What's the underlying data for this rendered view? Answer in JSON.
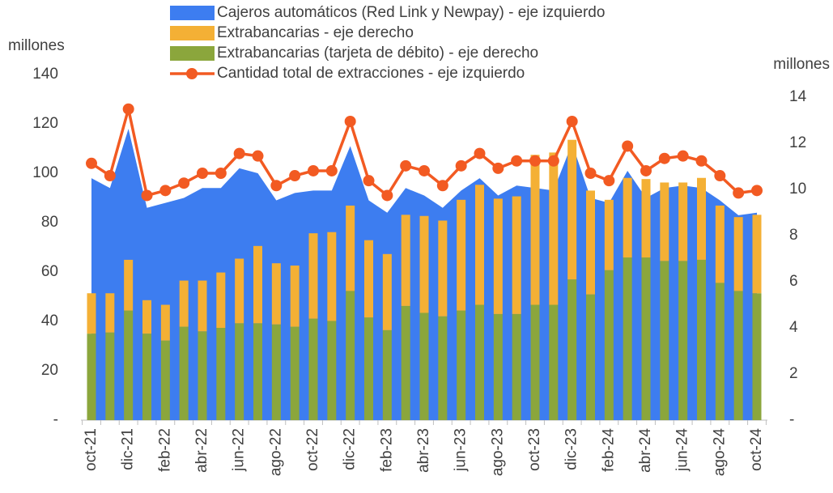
{
  "chart_data": {
    "type": "combo",
    "y_label": "millones",
    "y2_label": "millones",
    "categories": [
      "oct-21",
      null,
      "dic-21",
      null,
      "feb-22",
      null,
      "abr-22",
      null,
      "jun-22",
      null,
      "ago-22",
      null,
      "oct-22",
      null,
      "dic-22",
      null,
      "feb-23",
      null,
      "abr-23",
      null,
      "jun-23",
      null,
      "ago-23",
      null,
      "oct-23",
      null,
      "dic-23",
      null,
      "feb-24",
      null,
      "abr-24",
      null,
      "jun-24",
      null,
      "ago-24",
      null,
      "oct-24"
    ],
    "series": [
      {
        "name": "Cajeros automáticos (Red Link y Newpay) - eje izquierdo",
        "type": "area",
        "color": "#3d7df0",
        "axis": "y",
        "values": [
          98,
          94,
          118,
          86,
          88,
          90,
          94,
          94,
          102,
          100,
          89,
          92,
          93,
          93,
          111,
          89,
          84,
          94,
          91,
          86,
          93,
          98,
          91,
          95,
          94,
          93,
          112,
          90,
          88,
          101,
          90,
          94,
          95,
          94,
          89,
          83,
          84
        ]
      },
      {
        "name": "Extrabancarias - eje derecho",
        "type": "bar",
        "color": "#f4b035",
        "axis": "y2",
        "values": [
          1.75,
          1.7,
          2.2,
          1.45,
          1.55,
          2.0,
          2.2,
          2.4,
          2.8,
          3.35,
          2.65,
          2.65,
          3.7,
          3.85,
          3.7,
          3.35,
          3.3,
          3.95,
          4.2,
          4.15,
          4.8,
          5.2,
          5.0,
          5.1,
          6.5,
          6.6,
          6.05,
          4.5,
          3.05,
          3.45,
          3.4,
          3.4,
          3.4,
          3.55,
          3.35,
          3.2,
          3.4
        ]
      },
      {
        "name": "Extrabancarias (tarjeta de débito) - eje derecho",
        "type": "bar",
        "color": "#8ba63c",
        "axis": "y2",
        "values": [
          3.75,
          3.8,
          4.75,
          3.75,
          3.45,
          4.05,
          3.85,
          4.0,
          4.2,
          4.2,
          4.15,
          4.05,
          4.4,
          4.3,
          5.6,
          4.45,
          3.9,
          4.95,
          4.65,
          4.5,
          4.75,
          5.0,
          4.6,
          4.6,
          5.0,
          5.0,
          6.1,
          5.45,
          6.5,
          7.05,
          7.05,
          6.9,
          6.9,
          6.95,
          5.95,
          5.6,
          5.5
        ]
      },
      {
        "name": "Cantidad total de extracciones - eje izquierdo",
        "type": "line",
        "color": "#f25a22",
        "axis": "y",
        "values": [
          104,
          99,
          126,
          91,
          93,
          96,
          100,
          100,
          108,
          107,
          95,
          99,
          101,
          101,
          121,
          97,
          91,
          103,
          101,
          95,
          103,
          108,
          102,
          105,
          105,
          105,
          121,
          100,
          97,
          111,
          101,
          106,
          107,
          105,
          99,
          92,
          93
        ]
      }
    ],
    "ylim": [
      0,
      140
    ],
    "yticks": [
      {
        "value": 0,
        "label": "-"
      },
      20,
      40,
      60,
      80,
      100,
      120,
      140
    ],
    "y2lim": [
      0,
      14
    ],
    "y2ticks": [
      {
        "value": 0,
        "label": "-"
      },
      2,
      4,
      6,
      8,
      10,
      12,
      14
    ],
    "legend": "top"
  }
}
